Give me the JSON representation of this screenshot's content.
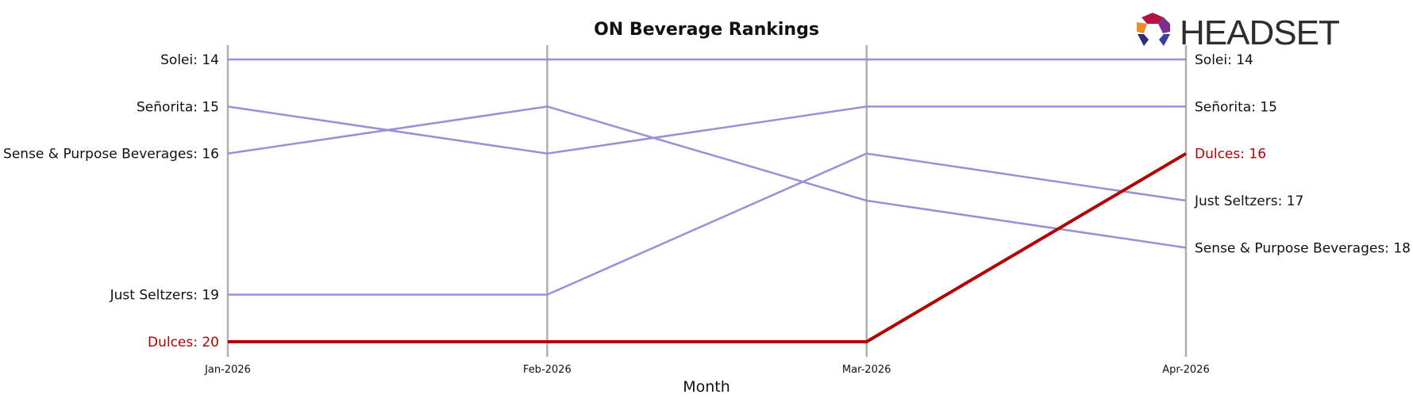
{
  "logo": {
    "text": "HEADSET"
  },
  "colors": {
    "highlight": "#b30000",
    "other": "#9b8fd8",
    "axis": "#b0b0b0"
  },
  "chart_data": {
    "type": "line",
    "title": "ON Beverage Rankings",
    "xlabel": "Month",
    "ylabel": "",
    "categories": [
      "Jan-2026",
      "Feb-2026",
      "Mar-2026",
      "Apr-2026"
    ],
    "ylim": [
      14,
      20
    ],
    "y_inverted": true,
    "grid": false,
    "series": [
      {
        "name": "Solei",
        "values": [
          14,
          14,
          14,
          14
        ],
        "highlight": false,
        "left_label": "Solei: 14",
        "right_label": "Solei: 14"
      },
      {
        "name": "Señorita",
        "values": [
          15,
          16,
          15,
          15
        ],
        "highlight": false,
        "left_label": "Señorita: 15",
        "right_label": "Señorita: 15"
      },
      {
        "name": "Sense & Purpose Beverages",
        "values": [
          16,
          15,
          17,
          18
        ],
        "highlight": false,
        "left_label": "Sense & Purpose Beverages: 16",
        "right_label": "Sense & Purpose Beverages: 18"
      },
      {
        "name": "Just Seltzers",
        "values": [
          19,
          19,
          16,
          17
        ],
        "highlight": false,
        "left_label": "Just Seltzers: 19",
        "right_label": "Just Seltzers: 17"
      },
      {
        "name": "Dulces",
        "values": [
          20,
          20,
          20,
          16
        ],
        "highlight": true,
        "left_label": "Dulces: 20",
        "right_label": "Dulces: 16"
      }
    ]
  }
}
